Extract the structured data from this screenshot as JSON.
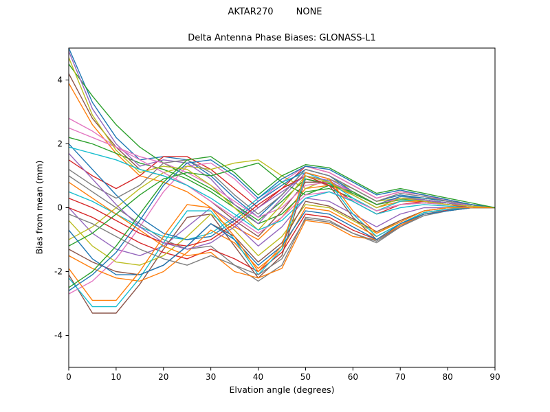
{
  "chart_data": {
    "type": "line",
    "suptitle": "AKTAR270        NONE",
    "title": "Delta Antenna Phase Biases: GLONASS-L1",
    "xlabel": "Elvation angle (degrees)",
    "ylabel": "Bias from mean (mm)",
    "xlim": [
      0,
      90
    ],
    "ylim": [
      -5,
      5
    ],
    "x_ticks": [
      0,
      10,
      20,
      30,
      40,
      50,
      60,
      70,
      80,
      90
    ],
    "y_ticks": [
      -4,
      -2,
      0,
      2,
      4
    ],
    "grid": false,
    "legend": "none",
    "x": [
      0,
      5,
      10,
      15,
      20,
      25,
      30,
      35,
      40,
      45,
      50,
      55,
      60,
      65,
      70,
      75,
      80,
      85,
      90
    ],
    "series": [
      {
        "color": "#1f77b4",
        "values": [
          5.0,
          3.3,
          2.2,
          1.5,
          1.6,
          1.5,
          1.0,
          0.3,
          -0.3,
          0.4,
          1.2,
          1.0,
          0.6,
          0.2,
          0.4,
          0.3,
          0.2,
          0.1,
          0.0
        ]
      },
      {
        "color": "#ff7f0e",
        "values": [
          3.9,
          2.6,
          1.7,
          1.0,
          0.8,
          0.5,
          0.0,
          -0.6,
          -1.0,
          -0.3,
          0.6,
          0.7,
          0.4,
          0.0,
          0.2,
          0.2,
          0.1,
          0.0,
          0.0
        ]
      },
      {
        "color": "#2ca02c",
        "values": [
          2.2,
          2.0,
          1.7,
          1.4,
          1.2,
          0.9,
          0.5,
          0.0,
          -0.5,
          -0.2,
          0.5,
          0.6,
          0.3,
          -0.1,
          0.1,
          0.15,
          0.1,
          0.05,
          0.0
        ]
      },
      {
        "color": "#d62728",
        "values": [
          1.5,
          1.0,
          0.6,
          1.0,
          1.6,
          1.6,
          1.2,
          0.6,
          0.0,
          0.6,
          1.3,
          1.1,
          0.7,
          0.3,
          0.5,
          0.4,
          0.25,
          0.1,
          0.0
        ]
      },
      {
        "color": "#9467bd",
        "values": [
          0.0,
          -0.8,
          -1.3,
          -1.5,
          -1.2,
          -0.6,
          0.0,
          -0.5,
          -1.2,
          -0.6,
          0.3,
          0.2,
          -0.2,
          -0.6,
          -0.2,
          0.0,
          0.0,
          0.0,
          0.0
        ]
      },
      {
        "color": "#8c564b",
        "values": [
          -2.1,
          -3.3,
          -3.3,
          -2.4,
          -1.3,
          -0.3,
          -0.2,
          -1.2,
          -2.2,
          -1.5,
          0.9,
          0.7,
          -0.3,
          -1.0,
          -0.6,
          -0.2,
          -0.1,
          0.0,
          0.0
        ]
      },
      {
        "color": "#e377c2",
        "values": [
          -2.7,
          -2.3,
          -1.6,
          -0.6,
          0.5,
          1.3,
          1.4,
          0.9,
          0.2,
          0.8,
          1.3,
          1.1,
          0.7,
          0.3,
          0.5,
          0.4,
          0.2,
          0.1,
          0.0
        ]
      },
      {
        "color": "#7f7f7f",
        "values": [
          1.0,
          0.5,
          0.0,
          -0.5,
          -1.0,
          -1.3,
          -1.2,
          -1.8,
          -2.3,
          -1.8,
          -0.3,
          -0.4,
          -0.8,
          -1.1,
          -0.6,
          -0.2,
          -0.1,
          0.0,
          0.0
        ]
      },
      {
        "color": "#bcbd22",
        "values": [
          -1.0,
          -0.6,
          0.0,
          0.6,
          1.1,
          1.3,
          1.2,
          1.4,
          1.5,
          1.0,
          0.6,
          0.9,
          0.6,
          0.2,
          0.3,
          0.3,
          0.2,
          0.1,
          0.0
        ]
      },
      {
        "color": "#17becf",
        "values": [
          0.5,
          0.2,
          -0.2,
          -0.6,
          -0.9,
          -1.0,
          -0.8,
          -0.3,
          0.3,
          0.8,
          1.1,
          0.8,
          0.3,
          -0.1,
          0.2,
          0.25,
          0.15,
          0.05,
          0.0
        ]
      },
      {
        "color": "#1f77b4",
        "values": [
          2.0,
          1.2,
          0.4,
          -0.3,
          -0.8,
          -1.0,
          -0.9,
          -0.4,
          0.2,
          0.7,
          1.2,
          1.0,
          0.5,
          0.1,
          0.35,
          0.3,
          0.2,
          0.1,
          0.0
        ]
      },
      {
        "color": "#ff7f0e",
        "values": [
          -1.5,
          -1.9,
          -2.2,
          -2.3,
          -2.0,
          -1.4,
          -0.7,
          -1.1,
          -1.9,
          -1.3,
          0.0,
          -0.1,
          -0.5,
          -0.9,
          -0.5,
          -0.15,
          -0.05,
          0.0,
          0.0
        ]
      },
      {
        "color": "#2ca02c",
        "values": [
          4.5,
          3.5,
          2.6,
          1.9,
          1.4,
          1.0,
          0.6,
          0.1,
          -0.4,
          0.2,
          0.9,
          0.75,
          0.45,
          0.1,
          0.3,
          0.25,
          0.15,
          0.05,
          0.0
        ]
      },
      {
        "color": "#d62728",
        "values": [
          0.0,
          -0.3,
          -0.7,
          -1.1,
          -1.4,
          -1.6,
          -1.3,
          -1.6,
          -2.0,
          -1.4,
          -0.2,
          -0.3,
          -0.7,
          -1.0,
          -0.55,
          -0.2,
          -0.08,
          0.0,
          0.0
        ]
      },
      {
        "color": "#9467bd",
        "values": [
          4.9,
          3.1,
          2.0,
          1.3,
          1.5,
          1.4,
          0.9,
          0.1,
          -0.5,
          0.3,
          1.1,
          0.9,
          0.5,
          0.1,
          0.3,
          0.2,
          0.15,
          0.05,
          0.0
        ]
      },
      {
        "color": "#8c564b",
        "values": [
          4.2,
          2.8,
          1.9,
          1.2,
          1.0,
          0.7,
          0.2,
          -0.4,
          -0.9,
          -0.1,
          0.8,
          0.8,
          0.5,
          0.1,
          0.3,
          0.2,
          0.1,
          0.05,
          0.0
        ]
      },
      {
        "color": "#e377c2",
        "values": [
          2.5,
          2.2,
          1.9,
          1.6,
          1.4,
          1.1,
          0.7,
          0.2,
          -0.3,
          0.0,
          0.7,
          0.8,
          0.5,
          0.1,
          0.3,
          0.25,
          0.15,
          0.1,
          0.0
        ]
      },
      {
        "color": "#7f7f7f",
        "values": [
          1.2,
          0.7,
          0.3,
          0.7,
          1.4,
          1.5,
          1.1,
          0.4,
          -0.2,
          0.4,
          1.2,
          1.0,
          0.6,
          0.2,
          0.45,
          0.35,
          0.2,
          0.1,
          0.0
        ]
      },
      {
        "color": "#bcbd22",
        "values": [
          -0.4,
          -1.2,
          -1.7,
          -1.8,
          -1.5,
          -0.9,
          -0.2,
          -0.7,
          -1.5,
          -0.9,
          0.1,
          0.0,
          -0.4,
          -0.8,
          -0.4,
          -0.1,
          0.0,
          0.0,
          0.0
        ]
      },
      {
        "color": "#17becf",
        "values": [
          -2.2,
          -3.1,
          -3.1,
          -2.2,
          -1.1,
          -0.1,
          -0.1,
          -1.0,
          -2.1,
          -1.3,
          1.0,
          0.8,
          -0.2,
          -0.9,
          -0.5,
          -0.15,
          -0.05,
          0.0,
          0.0
        ]
      },
      {
        "color": "#1f77b4",
        "values": [
          -2.6,
          -2.1,
          -1.4,
          -0.4,
          0.7,
          1.4,
          1.5,
          1.0,
          0.3,
          0.9,
          1.3,
          1.2,
          0.8,
          0.4,
          0.55,
          0.4,
          0.25,
          0.1,
          0.0
        ]
      },
      {
        "color": "#ff7f0e",
        "values": [
          0.8,
          0.3,
          -0.2,
          -0.7,
          -1.2,
          -1.5,
          -1.4,
          -2.0,
          -2.2,
          -1.9,
          -0.4,
          -0.5,
          -0.9,
          -1.0,
          -0.55,
          -0.2,
          -0.1,
          0.0,
          0.0
        ]
      },
      {
        "color": "#2ca02c",
        "values": [
          -1.2,
          -0.8,
          -0.2,
          0.4,
          0.9,
          1.1,
          1.0,
          1.2,
          1.4,
          0.8,
          0.4,
          0.7,
          0.5,
          0.1,
          0.25,
          0.25,
          0.15,
          0.05,
          0.0
        ]
      },
      {
        "color": "#d62728",
        "values": [
          0.3,
          0.0,
          -0.4,
          -0.8,
          -1.1,
          -1.2,
          -1.0,
          -0.5,
          0.1,
          0.6,
          1.0,
          0.7,
          0.2,
          -0.2,
          0.1,
          0.2,
          0.1,
          0.0,
          0.0
        ]
      },
      {
        "color": "#9467bd",
        "values": [
          1.7,
          0.9,
          0.1,
          -0.6,
          -1.1,
          -1.3,
          -1.1,
          -0.6,
          0.0,
          0.5,
          1.0,
          0.85,
          0.4,
          0.0,
          0.3,
          0.25,
          0.15,
          0.05,
          0.0
        ]
      },
      {
        "color": "#8c564b",
        "values": [
          -1.3,
          -1.7,
          -2.0,
          -2.1,
          -1.8,
          -1.2,
          -0.5,
          -0.9,
          -1.7,
          -1.1,
          0.2,
          0.05,
          -0.35,
          -0.75,
          -0.4,
          -0.1,
          0.0,
          0.0,
          0.0
        ]
      },
      {
        "color": "#e377c2",
        "values": [
          2.8,
          2.4,
          1.9,
          1.5,
          1.1,
          0.7,
          0.2,
          -0.3,
          -0.8,
          -0.3,
          0.4,
          0.5,
          0.25,
          -0.1,
          0.1,
          0.15,
          0.1,
          0.05,
          0.0
        ]
      },
      {
        "color": "#7f7f7f",
        "values": [
          -0.2,
          -0.5,
          -0.9,
          -1.3,
          -1.6,
          -1.8,
          -1.5,
          -1.8,
          -2.1,
          -1.6,
          -0.35,
          -0.45,
          -0.8,
          -1.05,
          -0.6,
          -0.25,
          -0.1,
          0.0,
          0.0
        ]
      },
      {
        "color": "#bcbd22",
        "values": [
          4.7,
          2.9,
          1.8,
          1.1,
          1.3,
          1.2,
          0.7,
          0.0,
          -0.7,
          0.1,
          1.0,
          0.8,
          0.4,
          0.0,
          0.3,
          0.2,
          0.1,
          0.05,
          0.0
        ]
      },
      {
        "color": "#17becf",
        "values": [
          1.9,
          1.7,
          1.5,
          1.2,
          1.0,
          0.7,
          0.3,
          -0.2,
          -0.7,
          -0.4,
          0.3,
          0.5,
          0.2,
          -0.2,
          0.0,
          0.1,
          0.05,
          0.0,
          0.0
        ]
      },
      {
        "color": "#1f77b4",
        "values": [
          -0.7,
          -1.6,
          -2.1,
          -2.1,
          -1.8,
          -1.2,
          -0.5,
          -1.0,
          -1.8,
          -1.2,
          -0.1,
          -0.2,
          -0.6,
          -1.0,
          -0.5,
          -0.2,
          -0.1,
          0.0,
          0.0
        ]
      },
      {
        "color": "#ff7f0e",
        "values": [
          -1.9,
          -2.9,
          -2.9,
          -2.0,
          -0.9,
          0.1,
          0.0,
          -0.9,
          -2.0,
          -1.2,
          1.1,
          0.9,
          -0.1,
          -0.8,
          -0.45,
          -0.1,
          0.0,
          0.0,
          0.0
        ]
      },
      {
        "color": "#2ca02c",
        "values": [
          -2.5,
          -2.0,
          -1.2,
          -0.2,
          0.8,
          1.5,
          1.6,
          1.1,
          0.4,
          1.0,
          1.35,
          1.25,
          0.85,
          0.45,
          0.6,
          0.45,
          0.3,
          0.15,
          0.0
        ]
      }
    ]
  }
}
